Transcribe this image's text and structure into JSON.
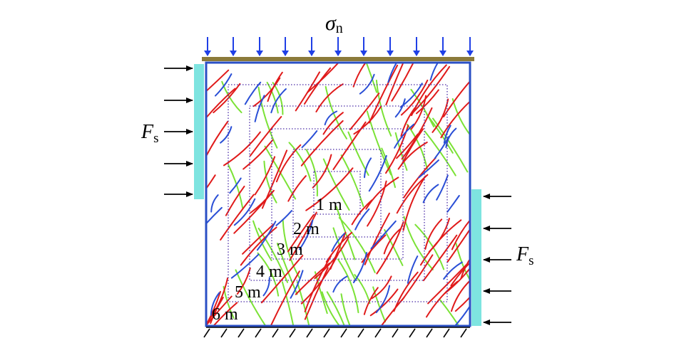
{
  "diagram": {
    "normal_stress_symbol": "σ",
    "normal_stress_subscript": "n",
    "shear_force_symbol": "F",
    "shear_force_subscript": "s",
    "window_labels": [
      "1 m",
      "2 m",
      "3 m",
      "4 m",
      "5 m",
      "6 m"
    ],
    "colors": {
      "specimen_border": "#2a4fc4",
      "loading_plate": "#8b7a3a",
      "normal_arrows": "#1f3fe6",
      "shear_platen": "#7ee4e0",
      "shear_arrows": "#000000",
      "window_outline": "#4b2ca8",
      "fracture_set_red": "#e01a1a",
      "fracture_set_green": "#7be236",
      "fracture_set_blue": "#2a4fd6"
    }
  }
}
